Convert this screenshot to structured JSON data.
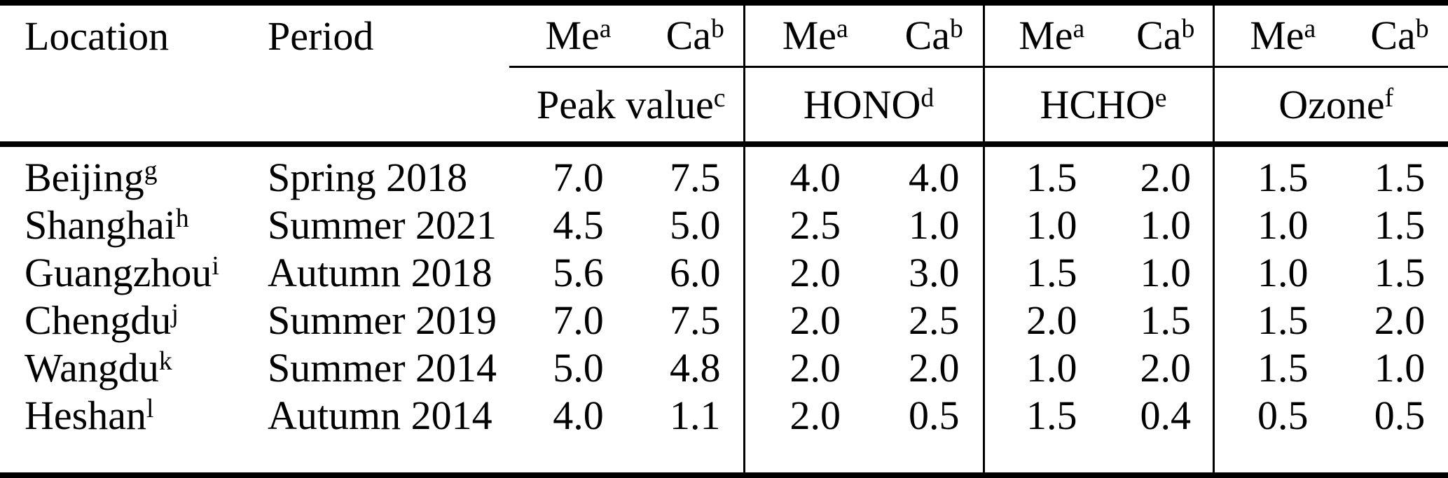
{
  "colors": {
    "text": "#000000",
    "background": "#ffffff",
    "rules": "#000000"
  },
  "table": {
    "headers": {
      "location": "Location",
      "period": "Period"
    },
    "pair_headers": {
      "me": "Me",
      "me_sup": "a",
      "ca": "Ca",
      "ca_sup": "b"
    },
    "groups": [
      {
        "label": "Peak value",
        "sup": "c"
      },
      {
        "label": "HONO",
        "sup": "d"
      },
      {
        "label": "HCHO",
        "sup": "e"
      },
      {
        "label": "Ozone",
        "sup": "f"
      }
    ],
    "rows": [
      {
        "location": "Beijing",
        "location_sup": "g",
        "period": "Spring 2018",
        "values": [
          "7.0",
          "7.5",
          "4.0",
          "4.0",
          "1.5",
          "2.0",
          "1.5",
          "1.5"
        ]
      },
      {
        "location": "Shanghai",
        "location_sup": "h",
        "period": "Summer 2021",
        "values": [
          "4.5",
          "5.0",
          "2.5",
          "1.0",
          "1.0",
          "1.0",
          "1.0",
          "1.5"
        ]
      },
      {
        "location": "Guangzhou",
        "location_sup": "i",
        "period": "Autumn 2018",
        "values": [
          "5.6",
          "6.0",
          "2.0",
          "3.0",
          "1.5",
          "1.0",
          "1.0",
          "1.5"
        ]
      },
      {
        "location": "Chengdu",
        "location_sup": "j",
        "period": "Summer 2019",
        "values": [
          "7.0",
          "7.5",
          "2.0",
          "2.5",
          "2.0",
          "1.5",
          "1.5",
          "2.0"
        ]
      },
      {
        "location": "Wangdu",
        "location_sup": "k",
        "period": "Summer 2014",
        "values": [
          "5.0",
          "4.8",
          "2.0",
          "2.0",
          "1.0",
          "2.0",
          "1.5",
          "1.0"
        ]
      },
      {
        "location": "Heshan",
        "location_sup": "l",
        "period": "Autumn 2014",
        "values": [
          "4.0",
          "1.1",
          "2.0",
          "0.5",
          "1.5",
          "0.4",
          "0.5",
          "0.5"
        ]
      }
    ]
  }
}
